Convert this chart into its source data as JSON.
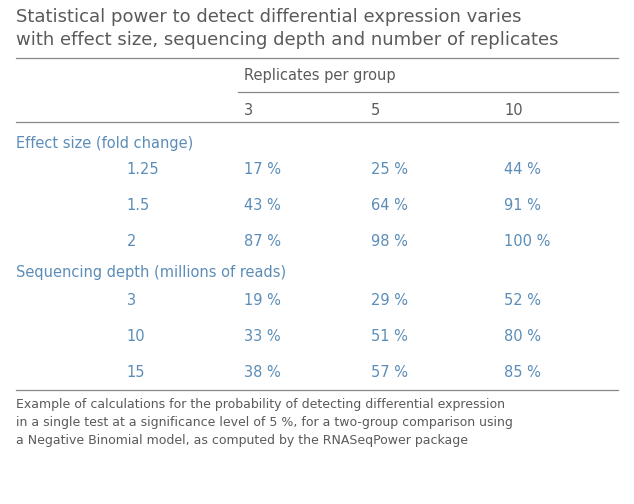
{
  "title": "Statistical power to detect differential expression varies\nwith effect size, sequencing depth and number of replicates",
  "header_group": "Replicates per group",
  "col_headers": [
    "3",
    "5",
    "10"
  ],
  "section1_label": "Effect size (fold change)",
  "section1_rows": [
    {
      "label": "1.25",
      "values": [
        "17 %",
        "25 %",
        "44 %"
      ]
    },
    {
      "label": "1.5",
      "values": [
        "43 %",
        "64 %",
        "91 %"
      ]
    },
    {
      "label": "2",
      "values": [
        "87 %",
        "98 %",
        "100 %"
      ]
    }
  ],
  "section2_label": "Sequencing depth (millions of reads)",
  "section2_rows": [
    {
      "label": "3",
      "values": [
        "19 %",
        "29 %",
        "52 %"
      ]
    },
    {
      "label": "10",
      "values": [
        "33 %",
        "51 %",
        "80 %"
      ]
    },
    {
      "label": "15",
      "values": [
        "38 %",
        "57 %",
        "85 %"
      ]
    }
  ],
  "footer": "Example of calculations for the probability of detecting differential expression\nin a single test at a significance level of 5 %, for a two-group comparison using\na Negative Binomial model, as computed by the RNASeqPower package",
  "text_color_dark": "#5a5a5a",
  "text_color_blue": "#5b8db8",
  "section_header_color": "#5b8db8",
  "background_color": "#ffffff",
  "line_color": "#888888"
}
